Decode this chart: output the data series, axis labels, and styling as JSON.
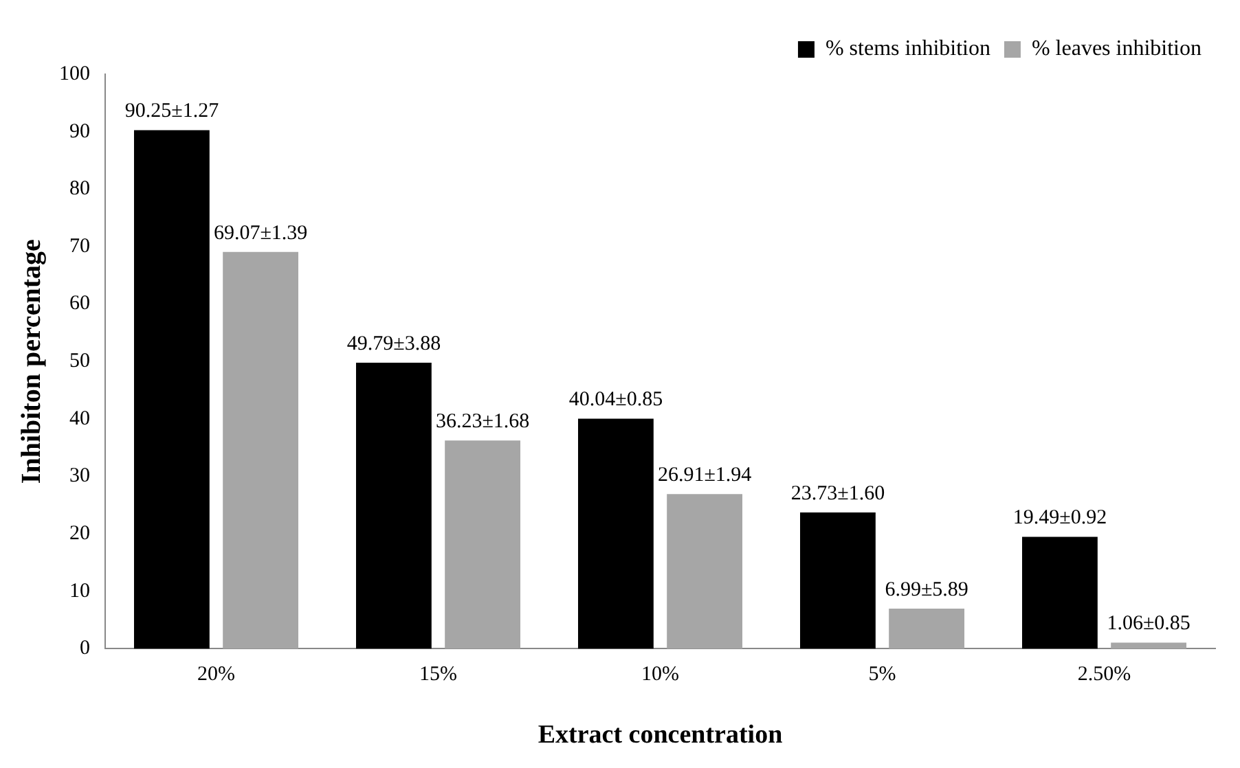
{
  "chart_data": {
    "type": "bar",
    "xlabel": "Extract concentration",
    "ylabel": "Inhibiton percentage",
    "categories": [
      "20%",
      "15%",
      "10%",
      "5%",
      "2.50%"
    ],
    "series": [
      {
        "name": "% stems inhibition",
        "color": "#000000",
        "values": [
          90.25,
          49.79,
          40.04,
          23.73,
          19.49
        ],
        "value_labels": [
          "90.25±1.27",
          "49.79±3.88",
          "40.04±0.85",
          "23.73±1.60",
          "19.49±0.92"
        ]
      },
      {
        "name": "% leaves inhibition",
        "color": "#a6a6a6",
        "values": [
          69.07,
          36.23,
          26.91,
          6.99,
          1.06
        ],
        "value_labels": [
          "69.07±1.39",
          "36.23±1.68",
          "26.91±1.94",
          "6.99±5.89",
          "1.06±0.85"
        ]
      }
    ],
    "ylim": [
      0,
      100
    ],
    "yticks": [
      0,
      10,
      20,
      30,
      40,
      50,
      60,
      70,
      80,
      90,
      100
    ],
    "grid": false,
    "legend": "top right"
  }
}
